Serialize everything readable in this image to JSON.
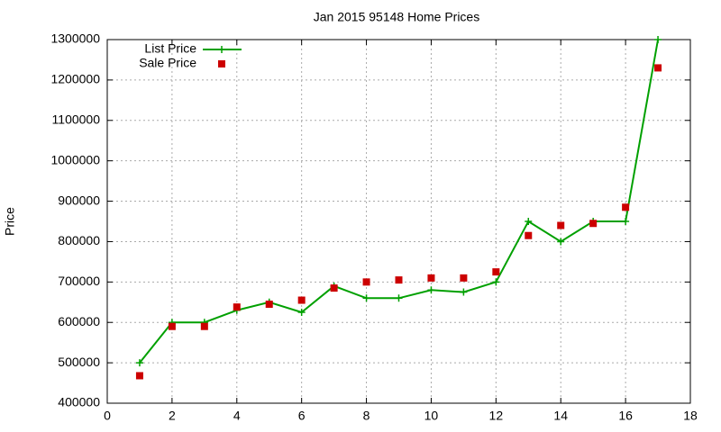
{
  "chart_data": {
    "type": "line",
    "title": "Jan 2015 95148 Home Prices",
    "y_label": "Price",
    "x": [
      1,
      2,
      3,
      4,
      5,
      6,
      7,
      8,
      9,
      10,
      11,
      12,
      13,
      14,
      15,
      16,
      17
    ],
    "series": [
      {
        "name": "List Price",
        "color": "#00a000",
        "style": "linespoints",
        "values": [
          500000,
          600000,
          600000,
          630000,
          650000,
          625000,
          690000,
          660000,
          660000,
          680000,
          675000,
          700000,
          850000,
          800000,
          850000,
          850000,
          1300000
        ]
      },
      {
        "name": "Sale Price",
        "color": "#cc0000",
        "style": "points",
        "values": [
          468000,
          590000,
          590000,
          638000,
          645000,
          655000,
          685000,
          700000,
          705000,
          710000,
          710000,
          725000,
          815000,
          840000,
          845000,
          885000,
          1230000
        ]
      }
    ],
    "xlim": [
      0,
      18
    ],
    "xticks": [
      0,
      2,
      4,
      6,
      8,
      10,
      12,
      14,
      16,
      18
    ],
    "ylim": [
      400000,
      1300000
    ],
    "yticks": [
      400000,
      500000,
      600000,
      700000,
      800000,
      900000,
      1000000,
      1100000,
      1200000,
      1300000
    ],
    "grid": true,
    "legend": "top-left"
  }
}
